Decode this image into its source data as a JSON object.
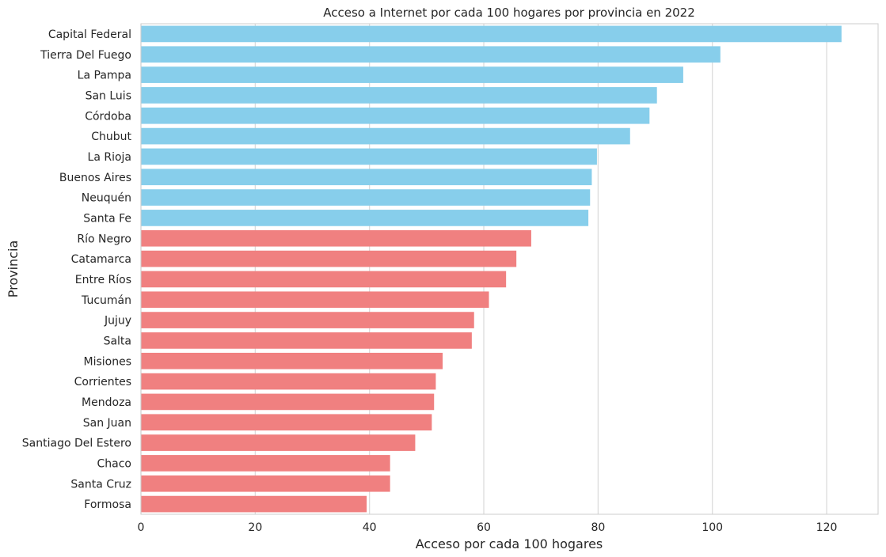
{
  "chart_data": {
    "type": "bar",
    "orientation": "horizontal",
    "title": "Acceso a Internet por cada 100 hogares por provincia en 2022",
    "xlabel": "Acceso por cada 100 hogares",
    "ylabel": "Provincia",
    "xlim": [
      0,
      129
    ],
    "xticks": [
      0,
      20,
      40,
      60,
      80,
      100,
      120
    ],
    "grid": "vertical",
    "categories": [
      "Capital Federal",
      "Tierra Del Fuego",
      "La Pampa",
      "San Luis",
      "Córdoba",
      "Chubut",
      "La Rioja",
      "Buenos Aires",
      "Neuquén",
      "Santa Fe",
      "Río Negro",
      "Catamarca",
      "Entre Ríos",
      "Tucumán",
      "Jujuy",
      "Salta",
      "Misiones",
      "Corrientes",
      "Mendoza",
      "San Juan",
      "Santiago Del Estero",
      "Chaco",
      "Santa Cruz",
      "Formosa"
    ],
    "values": [
      122.6,
      101.4,
      94.9,
      90.3,
      89.0,
      85.6,
      79.8,
      78.9,
      78.6,
      78.3,
      68.3,
      65.7,
      63.9,
      60.9,
      58.3,
      57.9,
      52.8,
      51.6,
      51.3,
      50.9,
      48.0,
      43.6,
      43.6,
      39.5
    ],
    "colors": {
      "top": "#87ceeb",
      "bottom": "#f08080",
      "top_count": 10
    }
  }
}
